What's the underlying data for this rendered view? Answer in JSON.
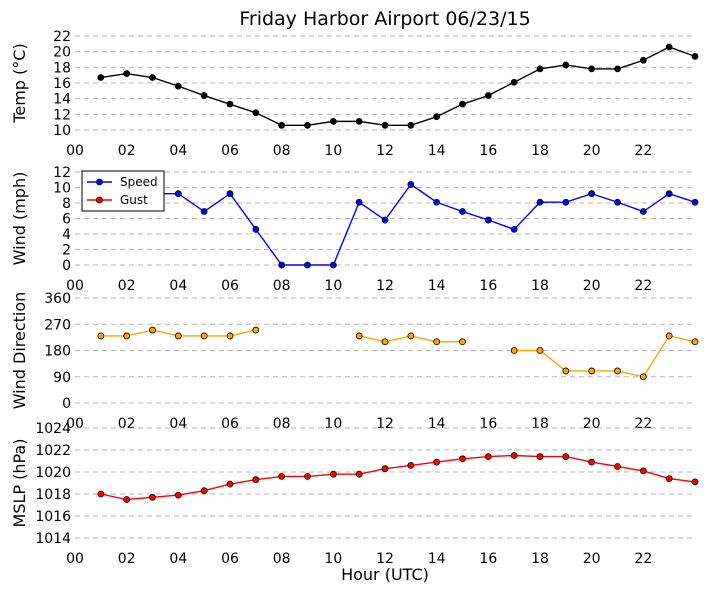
{
  "title": "Friday Harbor Airport 06/23/15",
  "xlabel": "Hour (UTC)",
  "chart_data": [
    {
      "type": "line",
      "ylabel": "Temp (°C)",
      "xlim": [
        0,
        24
      ],
      "ylim": [
        10,
        22
      ],
      "yticks": [
        10,
        12,
        14,
        16,
        18,
        20,
        22
      ],
      "xticks": [
        "00",
        "02",
        "04",
        "06",
        "08",
        "10",
        "12",
        "14",
        "16",
        "18",
        "20",
        "22"
      ],
      "grid": "y-dashed",
      "series": [
        {
          "color": "#000000",
          "x": [
            1,
            2,
            3,
            4,
            5,
            6,
            7,
            8,
            9,
            10,
            11,
            12,
            13,
            14,
            15,
            16,
            17,
            18,
            19,
            20,
            21,
            22,
            23,
            24
          ],
          "values": [
            16.7,
            17.2,
            16.7,
            15.6,
            14.4,
            13.3,
            12.2,
            10.6,
            10.6,
            11.1,
            11.1,
            10.6,
            10.6,
            11.7,
            13.3,
            14.4,
            16.1,
            17.8,
            18.3,
            17.8,
            17.8,
            18.9,
            20.6,
            19.4
          ]
        }
      ]
    },
    {
      "type": "line",
      "ylabel": "Wind (mph)",
      "xlim": [
        0,
        24
      ],
      "ylim": [
        0,
        12
      ],
      "yticks": [
        0,
        2,
        4,
        6,
        8,
        10,
        12
      ],
      "xticks": [
        "00",
        "02",
        "04",
        "06",
        "08",
        "10",
        "12",
        "14",
        "16",
        "18",
        "20",
        "22"
      ],
      "grid": "y-dashed",
      "legend": "upper-left",
      "series": [
        {
          "name": "Speed",
          "color": "#0000ff",
          "x": [
            1,
            2,
            3,
            4,
            5,
            6,
            7,
            8,
            9,
            10,
            11,
            12,
            13,
            14,
            15,
            16,
            17,
            18,
            19,
            20,
            21,
            22,
            23,
            24
          ],
          "values": [
            9.2,
            9.2,
            9.2,
            9.2,
            6.9,
            9.2,
            4.6,
            0,
            0,
            0,
            8.1,
            5.8,
            10.4,
            8.1,
            6.9,
            5.8,
            4.6,
            8.1,
            8.1,
            9.2,
            8.1,
            6.9,
            9.2,
            8.1
          ]
        },
        {
          "name": "Gust",
          "color": "#ff0000",
          "x": [],
          "values": []
        }
      ]
    },
    {
      "type": "line",
      "ylabel": "Wind Direction",
      "xlim": [
        0,
        24
      ],
      "ylim": [
        0,
        360
      ],
      "yticks": [
        0,
        90,
        180,
        270,
        360
      ],
      "xticks": [
        "00",
        "02",
        "04",
        "06",
        "08",
        "10",
        "12",
        "14",
        "16",
        "18",
        "20",
        "22"
      ],
      "grid": "y-dashed",
      "series": [
        {
          "color": "#ffa500",
          "x": [
            1,
            2,
            3,
            4,
            5,
            6,
            7,
            8,
            9,
            10,
            11,
            12,
            13,
            14,
            15,
            16,
            17,
            18,
            19,
            20,
            21,
            22,
            23,
            24
          ],
          "values": [
            230,
            230,
            250,
            230,
            230,
            230,
            250,
            null,
            null,
            null,
            230,
            210,
            230,
            210,
            210,
            null,
            180,
            180,
            110,
            110,
            110,
            90,
            230,
            210
          ]
        }
      ]
    },
    {
      "type": "line",
      "ylabel": "MSLP (hPa)",
      "xlim": [
        0,
        24
      ],
      "ylim": [
        1014,
        1024
      ],
      "yticks": [
        1014,
        1016,
        1018,
        1020,
        1022,
        1024
      ],
      "xticks": [
        "00",
        "02",
        "04",
        "06",
        "08",
        "10",
        "12",
        "14",
        "16",
        "18",
        "20",
        "22"
      ],
      "grid": "y-dashed",
      "series": [
        {
          "color": "#ff0000",
          "x": [
            1,
            2,
            3,
            4,
            5,
            6,
            7,
            8,
            9,
            10,
            11,
            12,
            13,
            14,
            15,
            16,
            17,
            18,
            19,
            20,
            21,
            22,
            23,
            24
          ],
          "values": [
            1018.0,
            1017.5,
            1017.7,
            1017.9,
            1018.3,
            1018.9,
            1019.3,
            1019.6,
            1019.6,
            1019.8,
            1019.8,
            1020.3,
            1020.6,
            1020.9,
            1021.2,
            1021.4,
            1021.5,
            1021.4,
            1021.4,
            1020.9,
            1020.5,
            1020.1,
            1019.4,
            1019.1
          ]
        }
      ]
    }
  ]
}
